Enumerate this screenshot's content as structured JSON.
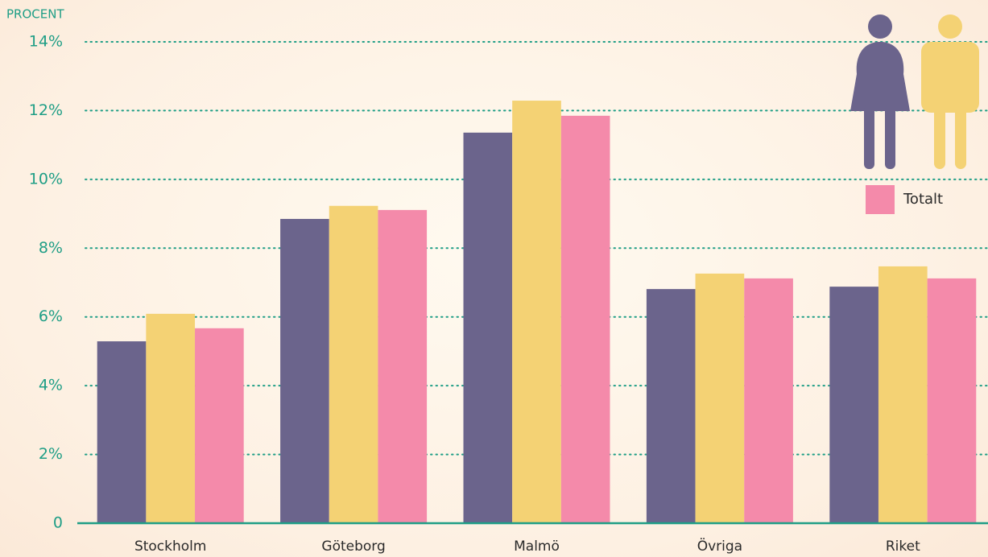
{
  "chart_data": {
    "type": "bar",
    "y_axis_label": "PROCENT",
    "categories": [
      "Stockholm",
      "Göteborg",
      "Malmö",
      "Övriga",
      "Riket"
    ],
    "series": [
      {
        "color": "#6b648c",
        "values": [
          5.29,
          8.85,
          11.36,
          6.81,
          6.88
        ]
      },
      {
        "color": "#f4d274",
        "values": [
          6.09,
          9.23,
          12.29,
          7.26,
          7.47
        ]
      },
      {
        "name": "Totalt",
        "color": "#f48aaa",
        "values": [
          5.67,
          9.11,
          11.85,
          7.12,
          7.12
        ]
      }
    ],
    "ylim": [
      0,
      14
    ],
    "yticks": [
      0,
      {
        "value": 2,
        "label": "2%"
      },
      {
        "value": 4,
        "label": "4%"
      },
      {
        "value": 6,
        "label": "6%"
      },
      {
        "value": 8,
        "label": "8%"
      },
      {
        "value": 10,
        "label": "10%"
      },
      {
        "value": 12,
        "label": "12%"
      },
      {
        "value": 14,
        "label": "14%"
      }
    ],
    "grid": true,
    "legend_position": "top-right"
  }
}
